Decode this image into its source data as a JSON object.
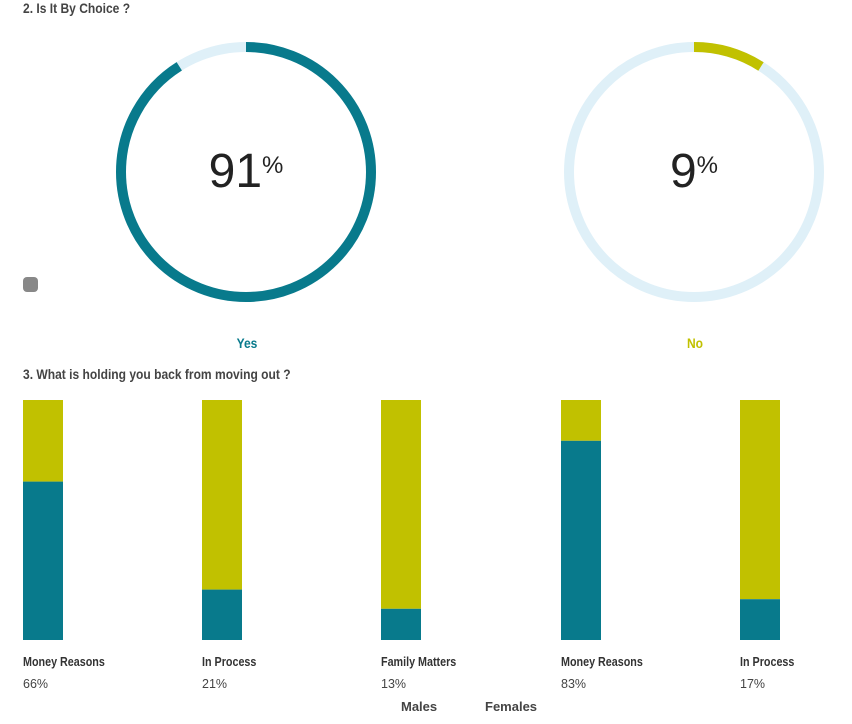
{
  "section2": {
    "title": "2. Is It By Choice ?"
  },
  "section3": {
    "title": "3. What is holding you back from moving out ?"
  },
  "colors": {
    "teal": "#087a8c",
    "olive": "#c1c100",
    "track": "#dff0f8",
    "gray": "#888888"
  },
  "chart_data": [
    {
      "type": "pie",
      "title": "2. Is It By Choice ?",
      "slices": [
        {
          "label": "Yes",
          "value": 91,
          "unit": "%"
        },
        {
          "label": "No",
          "value": 9,
          "unit": "%"
        }
      ]
    },
    {
      "type": "bar",
      "stacked": true,
      "title": "3. What is holding you back from moving out ?",
      "categories": [
        "Money Reasons",
        "In Process",
        "Family Matters",
        "Money Reasons",
        "In Process"
      ],
      "percent_labels": [
        "66%",
        "21%",
        "13%",
        "83%",
        "17%"
      ],
      "teal_values": [
        66,
        21,
        13,
        83,
        17
      ],
      "legend": [
        "Males",
        "Females"
      ],
      "ylim": [
        0,
        100
      ]
    }
  ]
}
